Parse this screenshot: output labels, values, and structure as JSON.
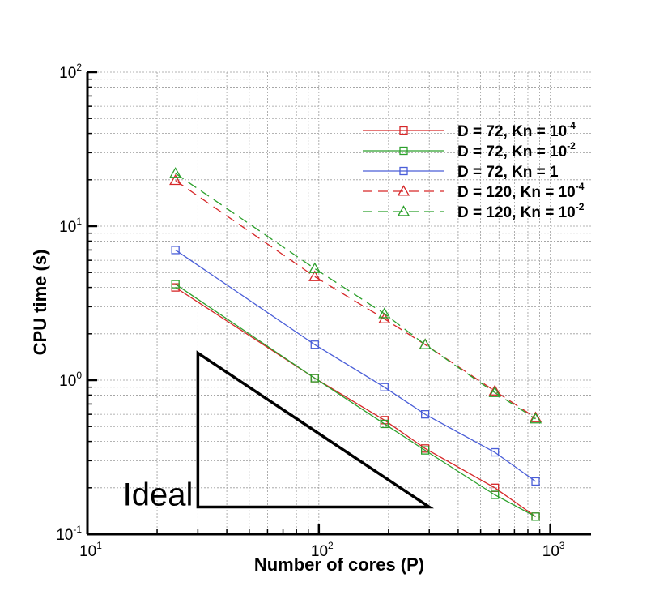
{
  "chart_data": {
    "type": "line",
    "xlabel": "Number of cores (P)",
    "ylabel": "CPU time (s)",
    "xscale": "log",
    "yscale": "log",
    "xlim": [
      10,
      1500
    ],
    "ylim": [
      0.1,
      100
    ],
    "x_ticks": [
      {
        "base": "10",
        "exp": "1"
      },
      {
        "base": "10",
        "exp": "2"
      },
      {
        "base": "10",
        "exp": "3"
      }
    ],
    "y_ticks": [
      {
        "base": "10",
        "exp": "-1"
      },
      {
        "base": "10",
        "exp": "0"
      },
      {
        "base": "10",
        "exp": "1"
      },
      {
        "base": "10",
        "exp": "2"
      }
    ],
    "grid": true,
    "legend_position": "top-right",
    "series": [
      {
        "name": "D = 72, Kn = 10",
        "name_exp": "-4",
        "color": "#d62728",
        "dash": "solid",
        "marker": "square",
        "x": [
          24,
          96,
          192,
          288,
          576,
          864
        ],
        "y": [
          4.0,
          1.03,
          0.55,
          0.36,
          0.2,
          0.13
        ]
      },
      {
        "name": "D = 72, Kn = 10",
        "name_exp": "-2",
        "color": "#2ca02c",
        "dash": "solid",
        "marker": "square",
        "x": [
          24,
          96,
          192,
          288,
          576,
          864
        ],
        "y": [
          4.2,
          1.03,
          0.52,
          0.35,
          0.18,
          0.13
        ]
      },
      {
        "name": "D = 72, Kn = 1",
        "name_exp": "",
        "color": "#4a5ed8",
        "dash": "solid",
        "marker": "square",
        "x": [
          24,
          96,
          192,
          288,
          576,
          864
        ],
        "y": [
          7.0,
          1.7,
          0.9,
          0.6,
          0.34,
          0.22
        ]
      },
      {
        "name": "D = 120, Kn = 10",
        "name_exp": "-4",
        "color": "#d62728",
        "dash": "dashed",
        "marker": "triangle",
        "x": [
          24,
          96,
          192,
          288,
          576,
          864
        ],
        "y": [
          19.8,
          4.7,
          2.5,
          1.7,
          0.85,
          0.57
        ]
      },
      {
        "name": "D = 120, Kn = 10",
        "name_exp": "-2",
        "color": "#2ca02c",
        "dash": "dashed",
        "marker": "triangle",
        "x": [
          24,
          96,
          192,
          288,
          576,
          864
        ],
        "y": [
          22.0,
          5.3,
          2.7,
          1.7,
          0.83,
          0.56
        ]
      }
    ],
    "annotations": {
      "ideal_label": "Ideal",
      "ideal_triangle": {
        "x": [
          30,
          30,
          300
        ],
        "y": [
          1.5,
          0.15,
          0.15
        ]
      }
    }
  }
}
